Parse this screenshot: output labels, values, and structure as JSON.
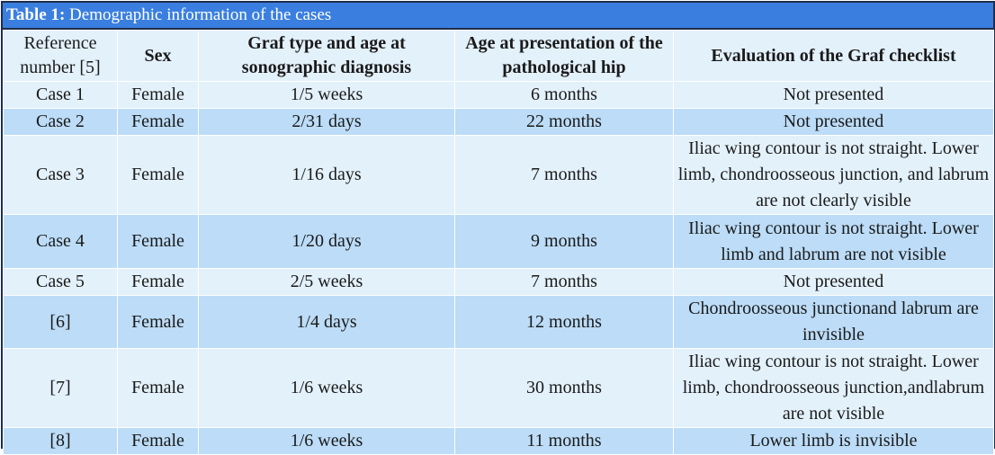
{
  "table": {
    "caption_label": "Table 1:",
    "caption_text": "Demographic information of the cases",
    "headers": [
      "Reference number [5]",
      "Sex",
      "Graf type and age at sonographic diagnosis",
      "Age at presentation of the pathological hip",
      "Evaluation of the Graf checklist"
    ],
    "rows": [
      {
        "ref": "Case 1",
        "sex": "Female",
        "graf": "1/5 weeks",
        "age": "6 months",
        "eval": "Not presented"
      },
      {
        "ref": "Case 2",
        "sex": "Female",
        "graf": "2/31 days",
        "age": "22 months",
        "eval": "Not presented"
      },
      {
        "ref": "Case 3",
        "sex": "Female",
        "graf": "1/16 days",
        "age": "7 months",
        "eval": "Iliac wing contour is not straight. Lower limb, chondroosseous junction, and labrum are not clearly visible"
      },
      {
        "ref": "Case 4",
        "sex": "Female",
        "graf": "1/20 days",
        "age": "9 months",
        "eval": "Iliac wing contour is not straight. Lower limb and labrum are not visible"
      },
      {
        "ref": "Case 5",
        "sex": "Female",
        "graf": "2/5 weeks",
        "age": "7 months",
        "eval": "Not presented"
      },
      {
        "ref": "[6]",
        "sex": "Female",
        "graf": "1/4 days",
        "age": "12 months",
        "eval": "Chondroosseous junctionand labrum are invisible"
      },
      {
        "ref": "[7]",
        "sex": "Female",
        "graf": "1/6 weeks",
        "age": "30 months",
        "eval": "Iliac wing contour is not straight. Lower limb, chondroosseous junction,andlabrum are not visible"
      },
      {
        "ref": "[8]",
        "sex": "Female",
        "graf": "1/6 weeks",
        "age": "11 months",
        "eval": "Lower limb is invisible"
      }
    ]
  }
}
